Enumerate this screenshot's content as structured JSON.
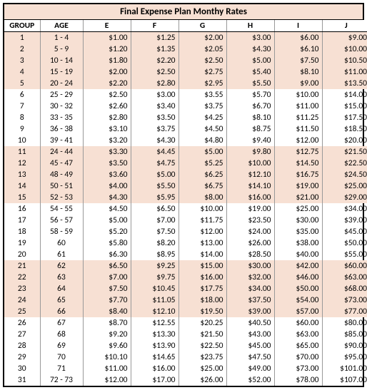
{
  "title": "Final Expense Plan Monthy Rates",
  "columns": [
    "GROUP",
    "AGE",
    "E",
    "F",
    "G",
    "H",
    "I",
    "J"
  ],
  "rows": [
    {
      "group": "1",
      "age": "1 - 4",
      "vals": [
        "$1.00",
        "$1.25",
        "$2.00",
        "$3.00",
        "$6.00",
        "$9.00"
      ]
    },
    {
      "group": "2",
      "age": "5 - 9",
      "vals": [
        "$1.20",
        "$1.35",
        "$2.05",
        "$4.30",
        "$6.10",
        "$10.00"
      ]
    },
    {
      "group": "3",
      "age": "10 - 14",
      "vals": [
        "$1.80",
        "$2.20",
        "$2.50",
        "$5.00",
        "$7.50",
        "$10.50"
      ]
    },
    {
      "group": "4",
      "age": "15 - 19",
      "vals": [
        "$2.00",
        "$2.50",
        "$2.75",
        "$5.40",
        "$8.10",
        "$11.00"
      ]
    },
    {
      "group": "5",
      "age": "20 - 24",
      "vals": [
        "$2.20",
        "$2.80",
        "$2.95",
        "$5.50",
        "$9.00",
        "$13.50"
      ]
    },
    {
      "group": "6",
      "age": "25 - 29",
      "vals": [
        "$2.50",
        "$3.00",
        "$3.55",
        "$5.70",
        "$10.00",
        "$14.00"
      ]
    },
    {
      "group": "7",
      "age": "30 - 32",
      "vals": [
        "$2.60",
        "$3.40",
        "$3.75",
        "$6.70",
        "$11.00",
        "$15.00"
      ]
    },
    {
      "group": "8",
      "age": "33 - 35",
      "vals": [
        "$2.80",
        "$3.50",
        "$4.25",
        "$8.10",
        "$11.25",
        "$17.50"
      ]
    },
    {
      "group": "9",
      "age": "36 - 38",
      "vals": [
        "$3.10",
        "$3.75",
        "$4.50",
        "$8.75",
        "$11.50",
        "$18.50"
      ]
    },
    {
      "group": "10",
      "age": "39 - 41",
      "vals": [
        "$3.20",
        "$4.30",
        "$4.80",
        "$9.40",
        "$12.00",
        "$20.00"
      ]
    },
    {
      "group": "11",
      "age": "24 - 44",
      "vals": [
        "$3.30",
        "$4.45",
        "$5.00",
        "$9.80",
        "$12.75",
        "$21.50"
      ]
    },
    {
      "group": "12",
      "age": "45 - 47",
      "vals": [
        "$3.50",
        "$4.75",
        "$5.25",
        "$10.00",
        "$14.50",
        "$22.50"
      ]
    },
    {
      "group": "13",
      "age": "48 - 49",
      "vals": [
        "$3.60",
        "$5.00",
        "$6.25",
        "$12.10",
        "$16.75",
        "$24.50"
      ]
    },
    {
      "group": "14",
      "age": "50 - 51",
      "vals": [
        "$4.00",
        "$5.50",
        "$6.75",
        "$14.10",
        "$19.00",
        "$25.00"
      ]
    },
    {
      "group": "15",
      "age": "52 - 53",
      "vals": [
        "$4.30",
        "$5.95",
        "$8.00",
        "$16.00",
        "$21.00",
        "$29.00"
      ]
    },
    {
      "group": "16",
      "age": "54 - 55",
      "vals": [
        "$4.50",
        "$6.50",
        "$10.00",
        "$19.00",
        "$25.00",
        "$34.00"
      ]
    },
    {
      "group": "17",
      "age": "56 - 57",
      "vals": [
        "$5.00",
        "$7.00",
        "$11.75",
        "$23.50",
        "$30.00",
        "$39.00"
      ]
    },
    {
      "group": "18",
      "age": "58 - 59",
      "vals": [
        "$5.20",
        "$7.50",
        "$12.00",
        "$24.00",
        "$35.00",
        "$45.00"
      ]
    },
    {
      "group": "19",
      "age": "60",
      "vals": [
        "$5.80",
        "$8.20",
        "$13.00",
        "$26.00",
        "$38.00",
        "$50.00"
      ]
    },
    {
      "group": "20",
      "age": "61",
      "vals": [
        "$6.30",
        "$8.95",
        "$14.00",
        "$28.50",
        "$40.00",
        "$55.00"
      ]
    },
    {
      "group": "21",
      "age": "62",
      "vals": [
        "$6.50",
        "$9.25",
        "$15.00",
        "$30.00",
        "$42.00",
        "$60.00"
      ]
    },
    {
      "group": "22",
      "age": "63",
      "vals": [
        "$7.00",
        "$9.75",
        "$16.00",
        "$32.00",
        "$46.00",
        "$63.00"
      ]
    },
    {
      "group": "23",
      "age": "64",
      "vals": [
        "$7.50",
        "$10.45",
        "$17.75",
        "$34.00",
        "$50.00",
        "$68.00"
      ]
    },
    {
      "group": "24",
      "age": "65",
      "vals": [
        "$7.70",
        "$11.05",
        "$18.00",
        "$37.50",
        "$54.00",
        "$73.00"
      ]
    },
    {
      "group": "25",
      "age": "66",
      "vals": [
        "$8.40",
        "$12.10",
        "$19.50",
        "$39.00",
        "$57.00",
        "$77.00"
      ]
    },
    {
      "group": "26",
      "age": "67",
      "vals": [
        "$8.70",
        "$12.55",
        "$20.25",
        "$40.50",
        "$60.00",
        "$80.00"
      ]
    },
    {
      "group": "27",
      "age": "68",
      "vals": [
        "$9.20",
        "$13.30",
        "$21.50",
        "$43.00",
        "$63.00",
        "$85.00"
      ]
    },
    {
      "group": "28",
      "age": "69",
      "vals": [
        "$9.60",
        "$13.90",
        "$22.50",
        "$45.00",
        "$65.00",
        "$90.00"
      ]
    },
    {
      "group": "29",
      "age": "70",
      "vals": [
        "$10.10",
        "$14.65",
        "$23.75",
        "$47.50",
        "$70.00",
        "$95.00"
      ]
    },
    {
      "group": "30",
      "age": "71",
      "vals": [
        "$11.00",
        "$16.00",
        "$25.00",
        "$49.00",
        "$73.00",
        "$101.00"
      ]
    },
    {
      "group": "31",
      "age": "72 - 73",
      "vals": [
        "$12.00",
        "$17.00",
        "$26.00",
        "$52.00",
        "$78.00",
        "$107.00"
      ]
    }
  ],
  "styling": {
    "band_color": "#f7e0d3",
    "border_color": "#000000",
    "font": "Calibri",
    "title_fontsize": 13,
    "body_fontsize": 11.5,
    "band_pattern": "5 shaded, 5 plain, repeating; last row plain"
  }
}
